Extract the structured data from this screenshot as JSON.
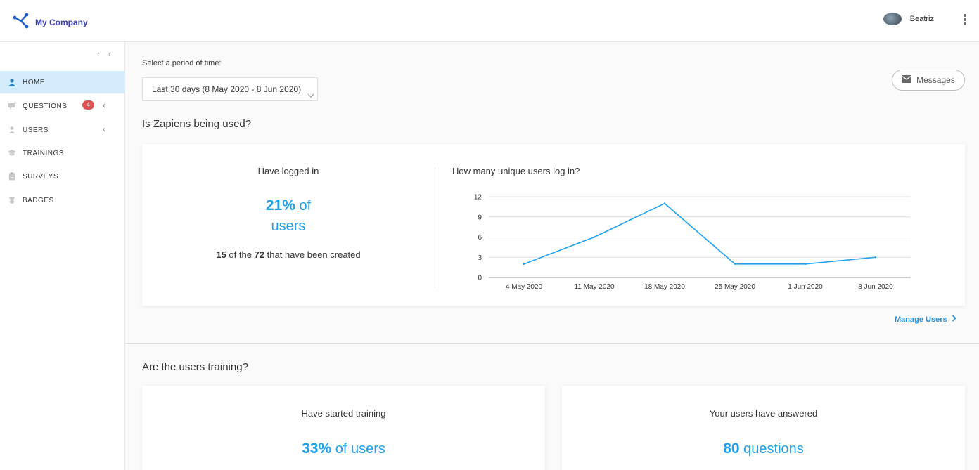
{
  "header": {
    "company_name": "My Company",
    "user_name": "Beatriz"
  },
  "sidebar": {
    "collapse_glyph": "‹ ›",
    "items": [
      {
        "label": "HOME",
        "icon": "home-user-icon",
        "active": true
      },
      {
        "label": "QUESTIONS",
        "icon": "chat-icon",
        "badge": "4",
        "has_submenu": true
      },
      {
        "label": "USERS",
        "icon": "person-icon",
        "has_submenu": true
      },
      {
        "label": "TRAININGS",
        "icon": "graduation-cap-icon"
      },
      {
        "label": "SURVEYS",
        "icon": "clipboard-icon"
      },
      {
        "label": "BADGES",
        "icon": "badge-icon"
      }
    ],
    "submenu_glyph": "‹"
  },
  "filters": {
    "period_label": "Select a period of time:",
    "period_value": "Last 30 days (8 May 2020 - 8 Jun 2020)"
  },
  "messages_button": {
    "label": "Messages",
    "icon": "envelope-icon"
  },
  "usage_section": {
    "title": "Is Zapiens being used?",
    "logged_in": {
      "title": "Have logged in",
      "percent": "21%",
      "percent_suffix": " of",
      "unit": "users",
      "count": "15",
      "of_the": " of the ",
      "total": "72",
      "suffix": " that have been created"
    },
    "chart_title": "How many unique users log in?",
    "manage_link": "Manage Users",
    "manage_icon": "chevron-right-icon"
  },
  "training_section": {
    "title": "Are the users training?",
    "started": {
      "title": "Have started training",
      "percent": "33%",
      "suffix": " of users"
    },
    "answered": {
      "title": "Your users have answered",
      "count": "80",
      "suffix": " questions"
    }
  },
  "colors": {
    "accent": "#1ea0ef",
    "brand": "#3b3fb6",
    "badge": "#e25151",
    "active_bg": "#d3ebfb"
  },
  "chart_data": {
    "type": "line",
    "categories": [
      "4 May 2020",
      "11 May 2020",
      "18 May 2020",
      "25 May 2020",
      "1 Jun 2020",
      "8 Jun 2020"
    ],
    "y_ticks": [
      "0",
      "3",
      "6",
      "9",
      "12"
    ],
    "values": [
      2,
      6,
      11,
      2,
      2,
      3
    ],
    "ylim": [
      0,
      12
    ],
    "grid": true,
    "line_color": "#1ea0ef"
  }
}
